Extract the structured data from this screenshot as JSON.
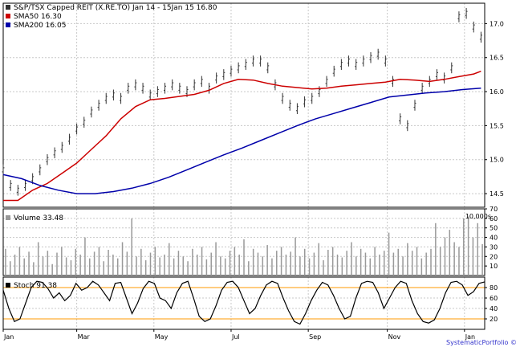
{
  "chart_data": [
    {
      "type": "line",
      "panel": "price",
      "legend": [
        {
          "label": "S&P/TSX Capped REIT (X.RE.TO) Jan 14 - 15Jan 15 16.80",
          "color": "#333333"
        },
        {
          "label": "SMA50 16.30",
          "color": "#cc0000"
        },
        {
          "label": "SMA200 16.05",
          "color": "#0000aa"
        }
      ],
      "ylim": [
        14.3,
        17.3
      ],
      "yticks": [
        "14.5",
        "15.0",
        "15.5",
        "16.0",
        "16.5",
        "17.0"
      ],
      "grid": true,
      "legend_position": "top-left",
      "series": [
        {
          "name": "S&P/TSX Capped REIT (X.RE.TO)",
          "style": "ohlc-bars",
          "color": "#333333",
          "points": [
            [
              0,
              14.85
            ],
            [
              4,
              14.62
            ],
            [
              8,
              14.55
            ],
            [
              12,
              14.62
            ],
            [
              16,
              14.72
            ],
            [
              20,
              14.85
            ],
            [
              24,
              15.0
            ],
            [
              28,
              15.1
            ],
            [
              32,
              15.18
            ],
            [
              36,
              15.3
            ],
            [
              40,
              15.45
            ],
            [
              44,
              15.55
            ],
            [
              48,
              15.7
            ],
            [
              52,
              15.8
            ],
            [
              56,
              15.9
            ],
            [
              60,
              15.95
            ],
            [
              64,
              15.9
            ],
            [
              68,
              16.05
            ],
            [
              72,
              16.1
            ],
            [
              76,
              16.05
            ],
            [
              80,
              15.95
            ],
            [
              84,
              16.0
            ],
            [
              88,
              16.05
            ],
            [
              92,
              16.1
            ],
            [
              96,
              16.05
            ],
            [
              100,
              16.0
            ],
            [
              104,
              16.1
            ],
            [
              108,
              16.15
            ],
            [
              112,
              16.05
            ],
            [
              116,
              16.2
            ],
            [
              120,
              16.25
            ],
            [
              124,
              16.3
            ],
            [
              128,
              16.35
            ],
            [
              132,
              16.4
            ],
            [
              136,
              16.45
            ],
            [
              140,
              16.45
            ],
            [
              144,
              16.35
            ],
            [
              148,
              16.1
            ],
            [
              152,
              15.9
            ],
            [
              156,
              15.8
            ],
            [
              160,
              15.75
            ],
            [
              164,
              15.85
            ],
            [
              168,
              15.9
            ],
            [
              172,
              16.0
            ],
            [
              176,
              16.15
            ],
            [
              180,
              16.3
            ],
            [
              184,
              16.4
            ],
            [
              188,
              16.45
            ],
            [
              192,
              16.4
            ],
            [
              196,
              16.45
            ],
            [
              200,
              16.5
            ],
            [
              204,
              16.55
            ],
            [
              208,
              16.45
            ],
            [
              212,
              16.15
            ],
            [
              216,
              15.6
            ],
            [
              220,
              15.5
            ],
            [
              224,
              15.8
            ],
            [
              228,
              16.05
            ],
            [
              232,
              16.15
            ],
            [
              236,
              16.25
            ],
            [
              240,
              16.2
            ],
            [
              244,
              16.35
            ],
            [
              248,
              17.1
            ],
            [
              252,
              17.15
            ],
            [
              256,
              16.95
            ],
            [
              260,
              16.8
            ]
          ]
        },
        {
          "name": "SMA50",
          "color": "#cc0000",
          "points": [
            [
              0,
              14.4
            ],
            [
              8,
              14.4
            ],
            [
              16,
              14.55
            ],
            [
              24,
              14.65
            ],
            [
              32,
              14.8
            ],
            [
              40,
              14.95
            ],
            [
              48,
              15.15
            ],
            [
              56,
              15.35
            ],
            [
              64,
              15.6
            ],
            [
              72,
              15.78
            ],
            [
              80,
              15.88
            ],
            [
              88,
              15.9
            ],
            [
              96,
              15.93
            ],
            [
              104,
              15.96
            ],
            [
              112,
              16.02
            ],
            [
              120,
              16.12
            ],
            [
              128,
              16.18
            ],
            [
              136,
              16.17
            ],
            [
              144,
              16.12
            ],
            [
              152,
              16.08
            ],
            [
              160,
              16.06
            ],
            [
              168,
              16.04
            ],
            [
              176,
              16.05
            ],
            [
              184,
              16.08
            ],
            [
              192,
              16.1
            ],
            [
              200,
              16.12
            ],
            [
              208,
              16.14
            ],
            [
              216,
              16.18
            ],
            [
              224,
              16.17
            ],
            [
              232,
              16.15
            ],
            [
              240,
              16.18
            ],
            [
              248,
              16.22
            ],
            [
              256,
              16.26
            ],
            [
              260,
              16.3
            ]
          ]
        },
        {
          "name": "SMA200",
          "color": "#0000aa",
          "points": [
            [
              0,
              14.78
            ],
            [
              10,
              14.72
            ],
            [
              20,
              14.62
            ],
            [
              30,
              14.55
            ],
            [
              40,
              14.5
            ],
            [
              50,
              14.5
            ],
            [
              60,
              14.53
            ],
            [
              70,
              14.58
            ],
            [
              80,
              14.65
            ],
            [
              90,
              14.74
            ],
            [
              100,
              14.85
            ],
            [
              110,
              14.96
            ],
            [
              120,
              15.07
            ],
            [
              130,
              15.17
            ],
            [
              140,
              15.28
            ],
            [
              150,
              15.39
            ],
            [
              160,
              15.5
            ],
            [
              170,
              15.6
            ],
            [
              180,
              15.68
            ],
            [
              190,
              15.76
            ],
            [
              200,
              15.84
            ],
            [
              210,
              15.92
            ],
            [
              220,
              15.95
            ],
            [
              230,
              15.98
            ],
            [
              240,
              16.0
            ],
            [
              250,
              16.03
            ],
            [
              260,
              16.05
            ]
          ]
        }
      ]
    },
    {
      "type": "bar",
      "panel": "volume",
      "label": "Volume 33.48",
      "unit_label": "10,000s",
      "color": "#999999",
      "ylim": [
        0,
        70
      ],
      "yticks": [
        "10",
        "20",
        "30",
        "40",
        "50",
        "60",
        "70"
      ],
      "values": [
        28,
        15,
        22,
        30,
        18,
        25,
        14,
        35,
        20,
        26,
        12,
        24,
        30,
        19,
        16,
        28,
        22,
        40,
        18,
        25,
        30,
        15,
        27,
        22,
        18,
        35,
        25,
        60,
        20,
        28,
        16,
        24,
        30,
        19,
        22,
        34,
        18,
        26,
        20,
        15,
        28,
        22,
        30,
        17,
        24,
        35,
        20,
        18,
        26,
        30,
        22,
        38,
        15,
        28,
        24,
        20,
        32,
        18,
        26,
        30,
        22,
        25,
        40,
        20,
        28,
        18,
        24,
        34,
        16,
        27,
        30,
        22,
        19,
        26,
        35,
        20,
        28,
        24,
        18,
        30,
        22,
        26,
        45,
        24,
        28,
        20,
        34,
        26,
        30,
        18,
        24,
        28,
        55,
        30,
        40,
        48,
        35,
        30,
        60,
        62,
        40,
        55,
        33
      ]
    },
    {
      "type": "line",
      "panel": "stochastic",
      "label": "Stoch 91.38",
      "color": "#000000",
      "ylim": [
        0,
        100
      ],
      "yticks": [
        "20",
        "40",
        "60",
        "80"
      ],
      "reference_lines": [
        80,
        20
      ],
      "reference_color": "#ff9900",
      "values": [
        75,
        40,
        15,
        20,
        50,
        80,
        92,
        90,
        78,
        60,
        70,
        55,
        65,
        88,
        75,
        80,
        92,
        85,
        70,
        55,
        88,
        90,
        60,
        30,
        50,
        78,
        92,
        88,
        60,
        55,
        40,
        70,
        88,
        92,
        60,
        25,
        15,
        20,
        45,
        75,
        90,
        92,
        80,
        55,
        30,
        40,
        65,
        85,
        92,
        88,
        60,
        35,
        15,
        10,
        30,
        55,
        75,
        90,
        85,
        65,
        40,
        20,
        25,
        60,
        88,
        92,
        90,
        70,
        40,
        60,
        80,
        92,
        88,
        55,
        30,
        15,
        12,
        18,
        40,
        70,
        90,
        92,
        85,
        65,
        72,
        88,
        91
      ]
    }
  ],
  "x_axis": {
    "tick_labels": [
      "Jan",
      "Mar",
      "May",
      "Jul",
      "Sep",
      "Nov",
      "Jan"
    ],
    "tick_positions": [
      0,
      40,
      82,
      124,
      166,
      209,
      251
    ],
    "domain": [
      0,
      262
    ]
  },
  "footer": {
    "attribution": "SystematicPortfolio ©"
  }
}
